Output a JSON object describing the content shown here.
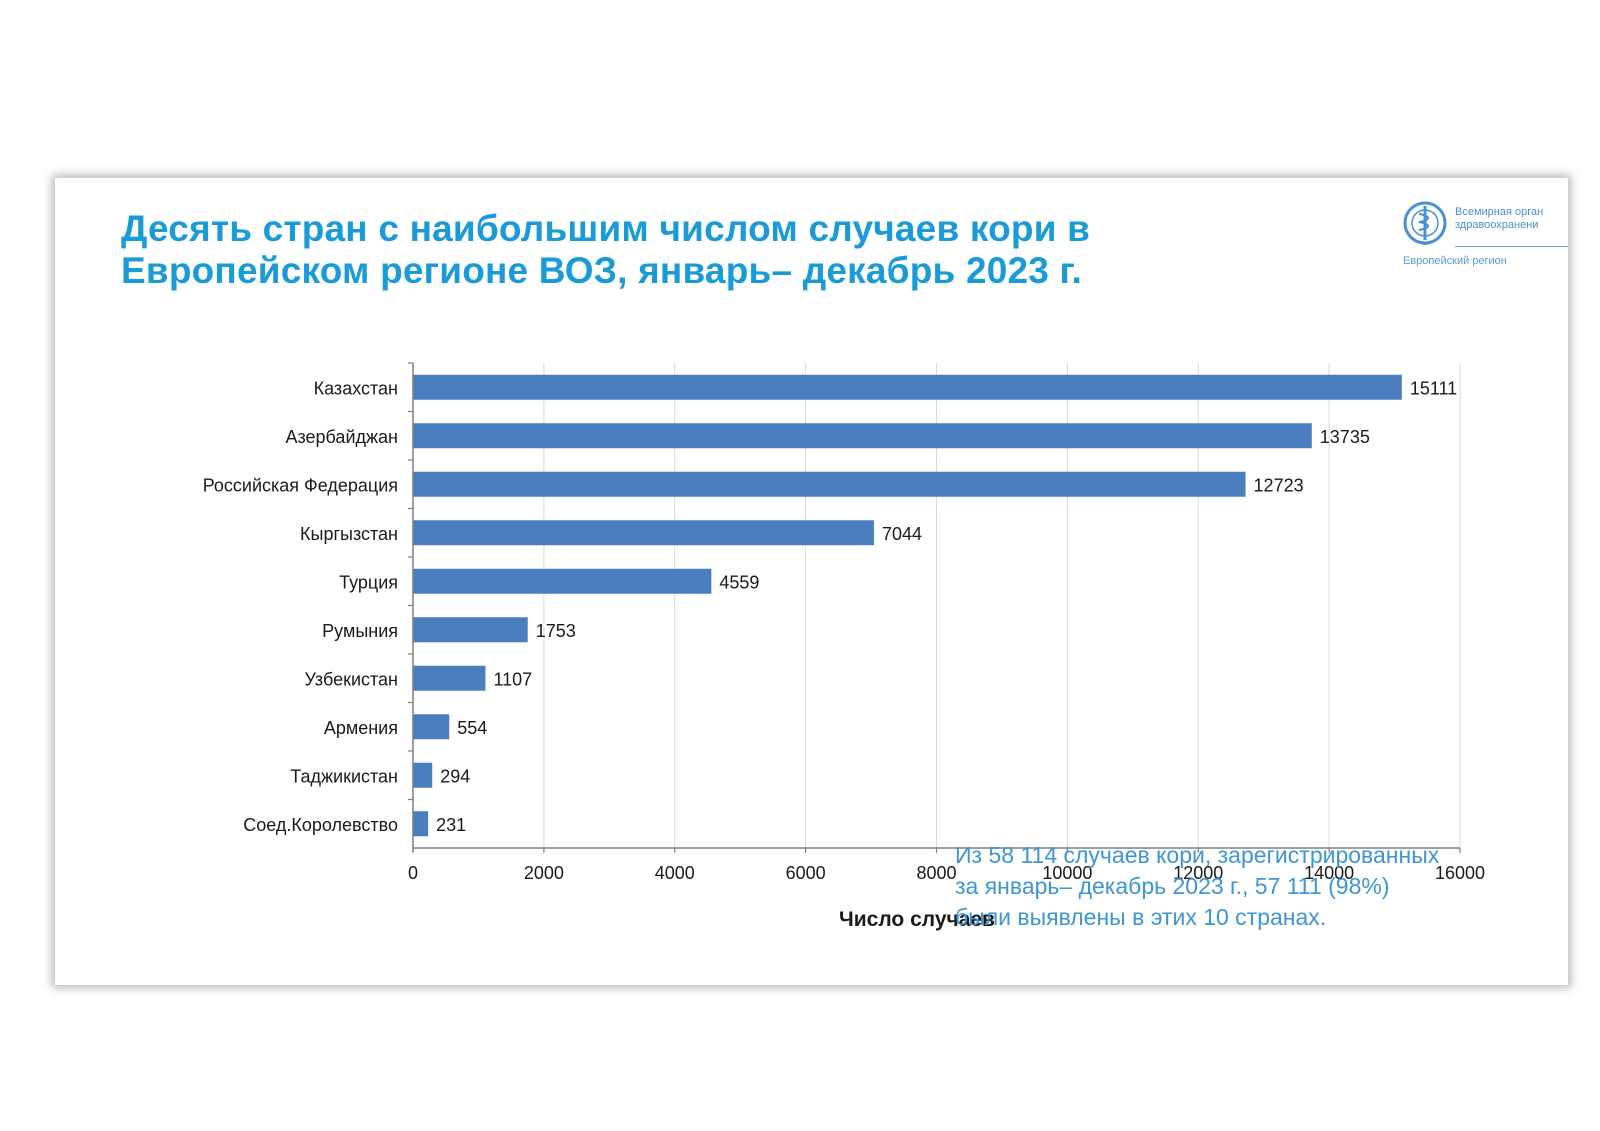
{
  "slide": {
    "title_lines": [
      "Десять стран с наибольшим числом случаев кори в",
      "Европейском регионе ВОЗ, январь– декабрь 2023 г."
    ],
    "logo": {
      "name_lines": [
        "Всемирная орган",
        "здравоохранени"
      ],
      "region": "Европейский регион"
    },
    "note_lines": [
      "Из 58 114 случаев кори, зарегистрированных",
      "за  январь– декабрь 2023 г., 57 111 (98%)",
      "были выявлены в этих 10 странах."
    ]
  },
  "colors": {
    "title": "#1a9bd7",
    "bar": "#4a7ebf",
    "note": "#3e95d5",
    "grid": "#d9d9d9",
    "axis": "#7f7f7f"
  },
  "chart_data": {
    "type": "bar",
    "orientation": "horizontal",
    "title": "Десять стран с наибольшим числом случаев кори в Европейском регионе ВОЗ, январь– декабрь 2023 г.",
    "xlabel": "Число случаев",
    "ylabel": "",
    "categories": [
      "Казахстан",
      "Азербайджан",
      "Российская Федерация",
      "Кыргызстан",
      "Турция",
      "Румыния",
      "Узбекистан",
      "Армения",
      "Таджикистан",
      "Соед.Королевство"
    ],
    "values": [
      15111,
      13735,
      12723,
      7044,
      4559,
      1753,
      1107,
      554,
      294,
      231
    ],
    "data_labels": [
      "15111",
      "13735",
      "12723",
      "7044",
      "4559",
      "1753",
      "1107",
      "554",
      "294",
      "231"
    ],
    "xlim": [
      0,
      16000
    ],
    "xticks": [
      0,
      2000,
      4000,
      6000,
      8000,
      10000,
      12000,
      14000,
      16000
    ],
    "xtick_labels": [
      "0",
      "2000",
      "4000",
      "6000",
      "8000",
      "10000",
      "12000",
      "14000",
      "16000"
    ],
    "grid": true,
    "legend": "none"
  }
}
